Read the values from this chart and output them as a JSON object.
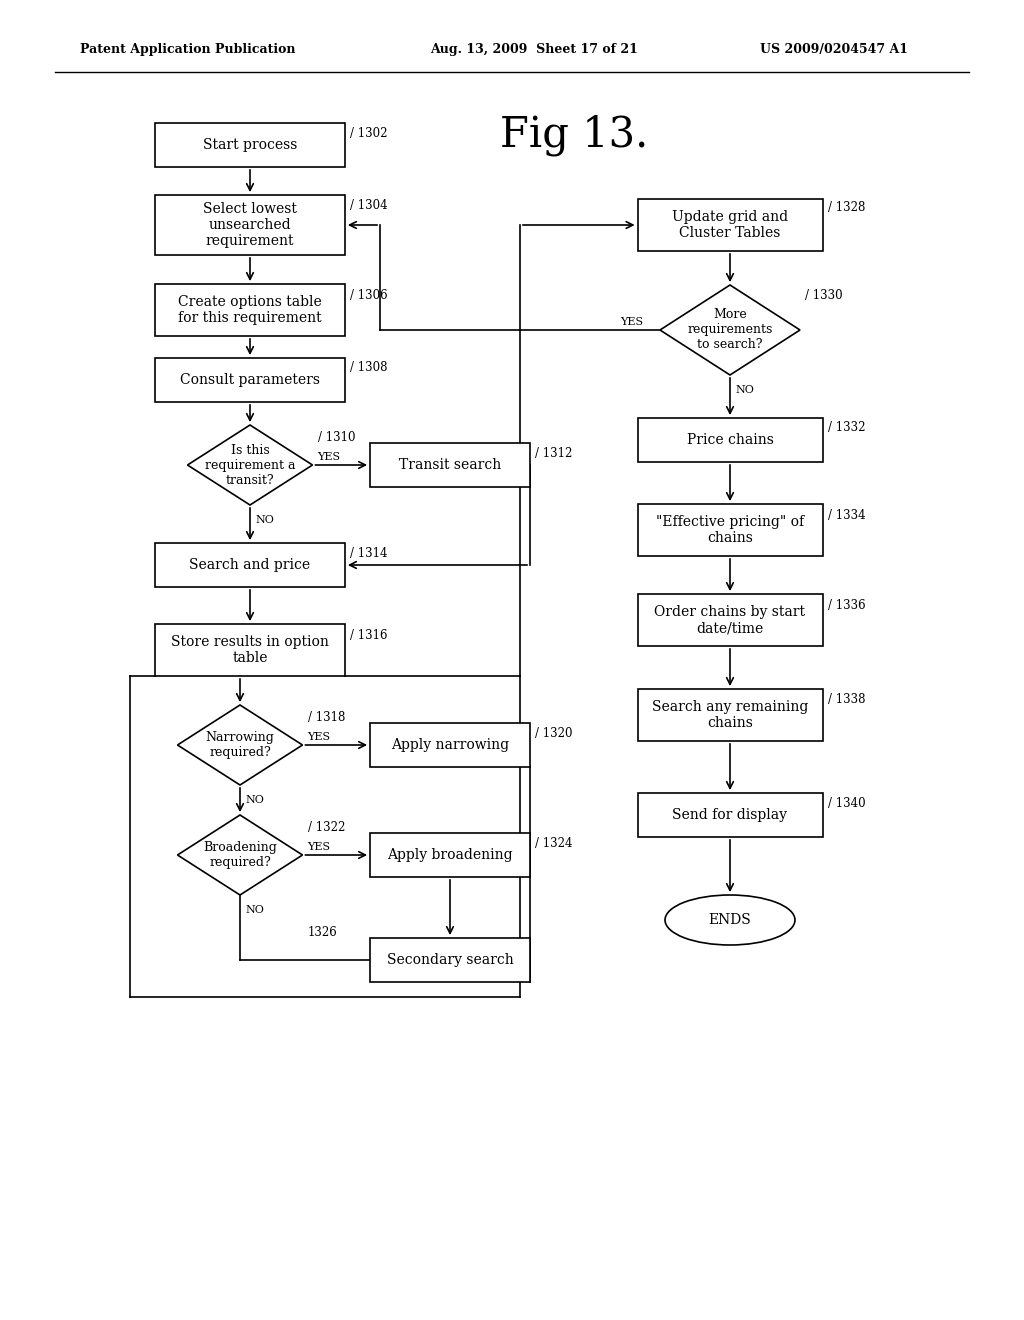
{
  "header_left": "Patent Application Publication",
  "header_mid": "Aug. 13, 2009  Sheet 17 of 21",
  "header_right": "US 2009/0204547 A1",
  "fig_title": "Fig 13.",
  "bg_color": "#ffffff"
}
